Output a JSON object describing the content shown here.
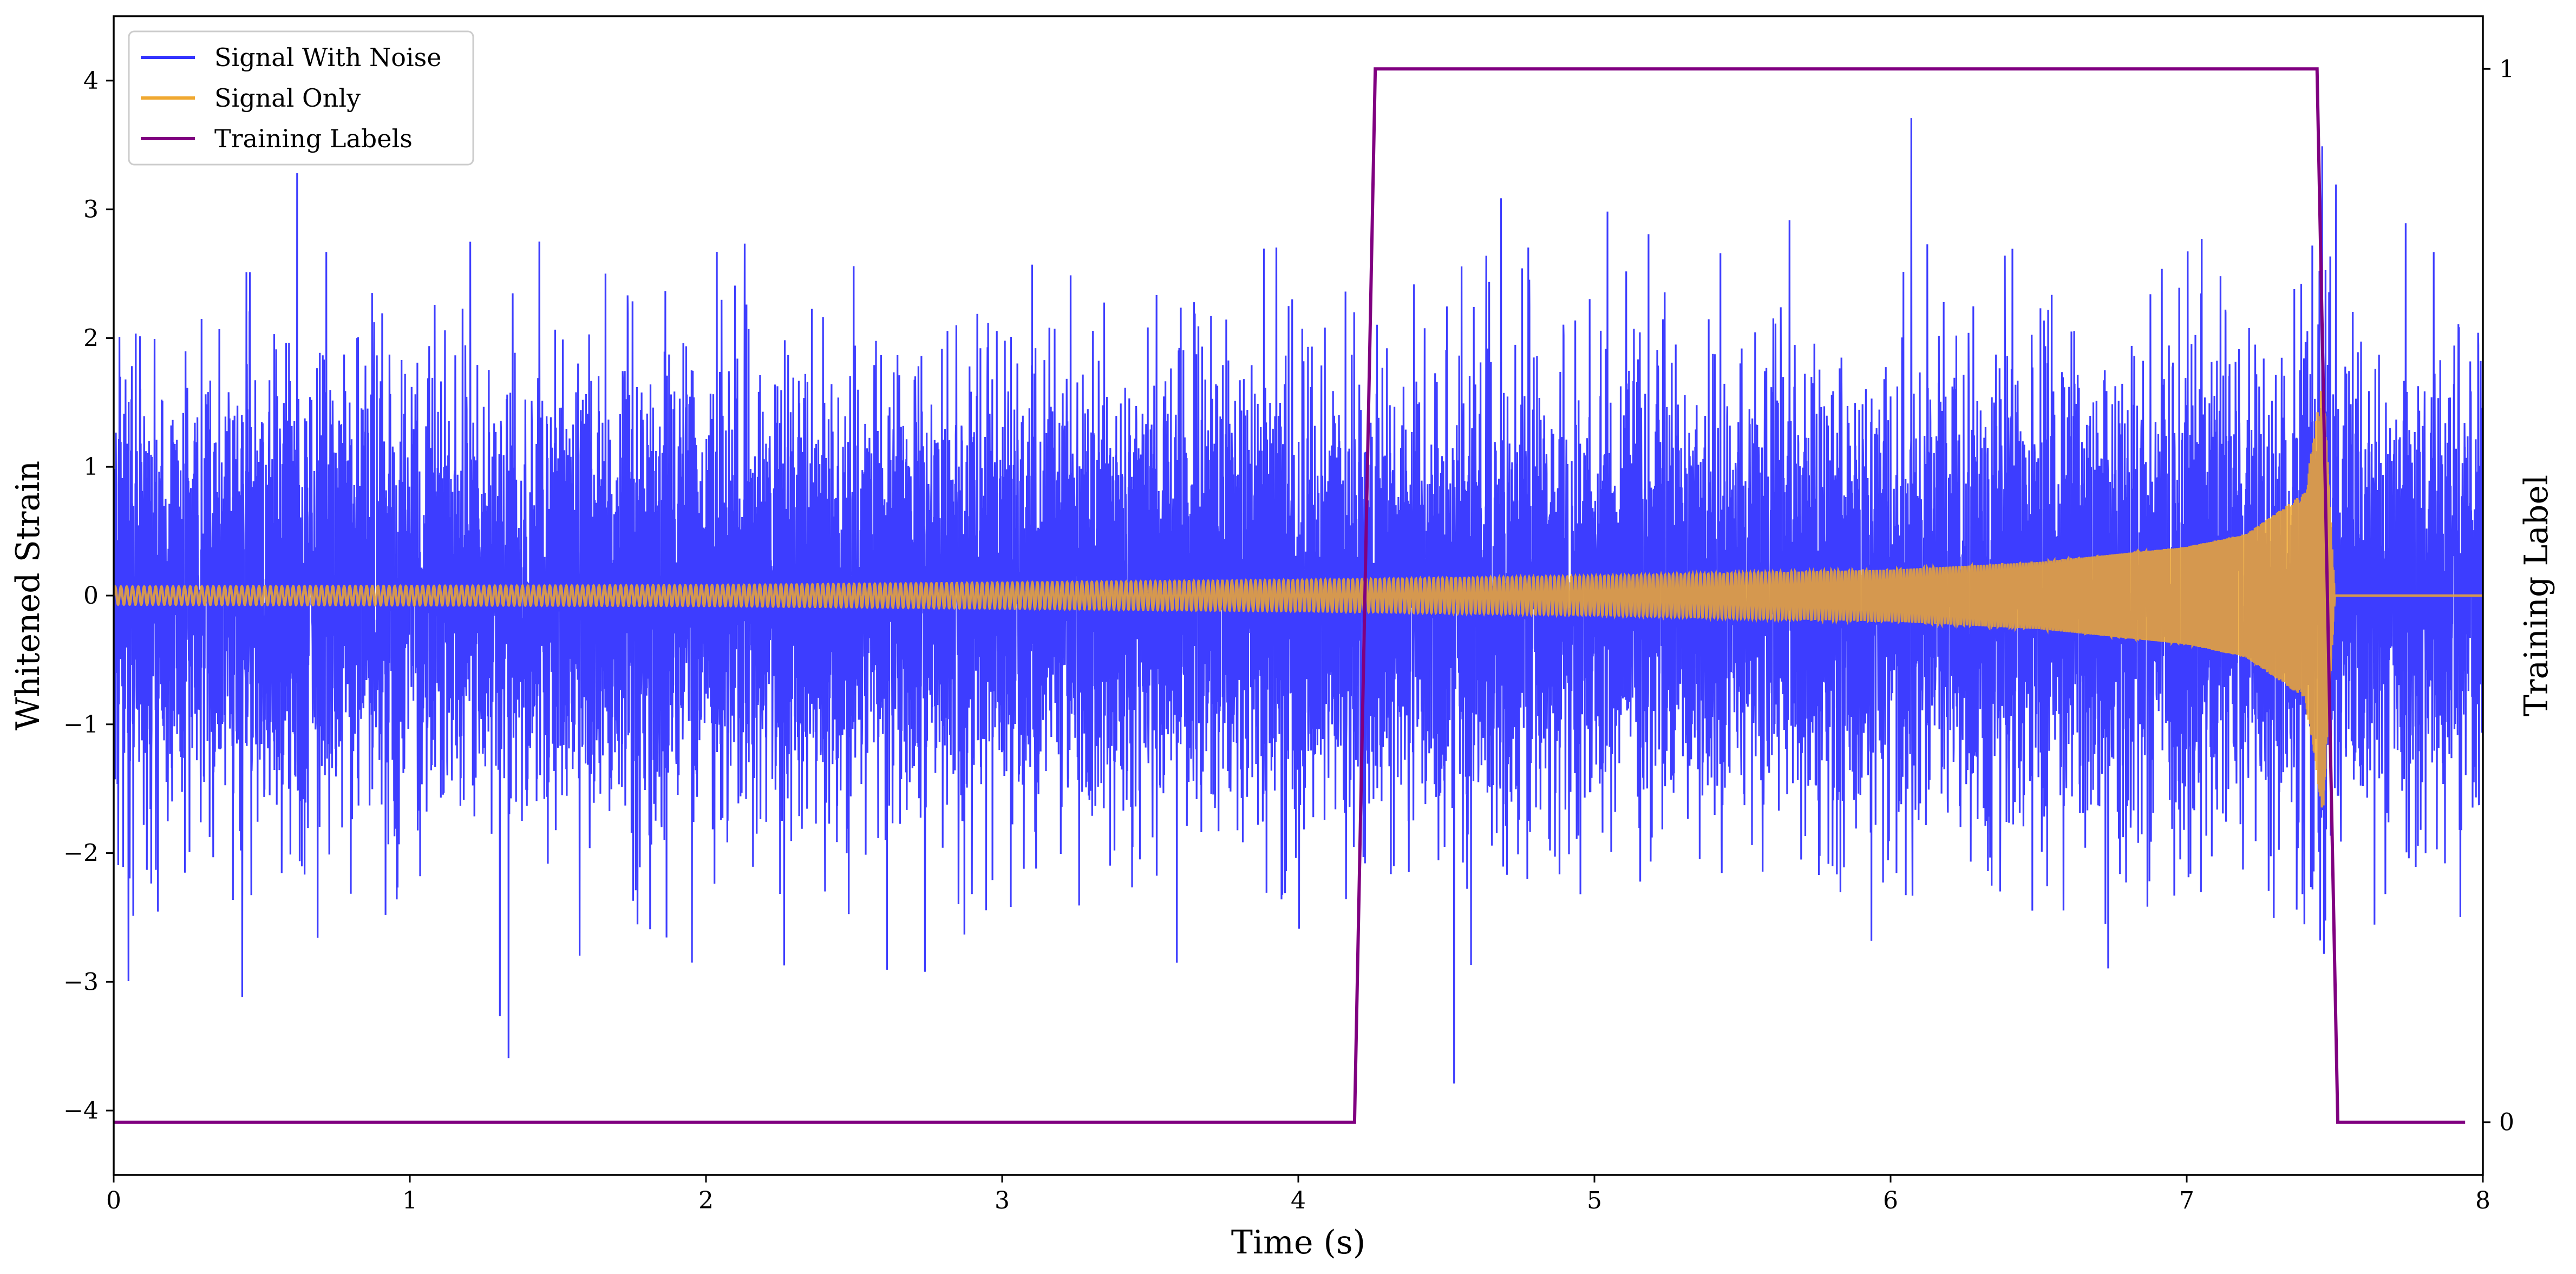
{
  "chart_data": {
    "type": "line",
    "title": "",
    "xlabel": "Time (s)",
    "ylabel": "Whitened Strain",
    "y2label": "Training Label",
    "xlim": [
      0,
      8
    ],
    "ylim": [
      -4.5,
      4.5
    ],
    "y2lim": [
      -0.05,
      1.05
    ],
    "x_ticks": [
      0,
      1,
      2,
      3,
      4,
      5,
      6,
      7,
      8
    ],
    "y_ticks": [
      -4,
      -3,
      -2,
      -1,
      0,
      1,
      2,
      3,
      4
    ],
    "y2_ticks": [
      0,
      1
    ],
    "grid": false,
    "legend_position": "top-left",
    "series": [
      {
        "name": "Signal With Noise",
        "color": "#3333ff",
        "axis": "left",
        "description": "high-frequency noisy strain with signal; amplitude roughly ±3.5",
        "approx_range": [
          -3.7,
          3.7
        ]
      },
      {
        "name": "Signal Only",
        "color": "#f0a830",
        "axis": "left",
        "description": "chirp signal",
        "envelope": {
          "x": [
            0,
            2,
            4,
            5,
            6,
            6.5,
            7,
            7.2,
            7.4,
            7.46,
            7.5,
            8
          ],
          "amp": [
            0.07,
            0.08,
            0.12,
            0.15,
            0.2,
            0.26,
            0.38,
            0.48,
            0.8,
            1.7,
            0.0,
            0.0
          ]
        }
      },
      {
        "name": "Training Labels",
        "color": "#800080",
        "axis": "right",
        "x": [
          0,
          4.19,
          4.26,
          7.44,
          7.51,
          7.94
        ],
        "values": [
          0,
          0,
          1,
          1,
          0,
          0
        ]
      }
    ]
  },
  "legend": {
    "items": [
      {
        "label": "Signal With Noise",
        "color": "#3333ff"
      },
      {
        "label": "Signal Only",
        "color": "#f0a830"
      },
      {
        "label": "Training Labels",
        "color": "#800080"
      }
    ]
  }
}
